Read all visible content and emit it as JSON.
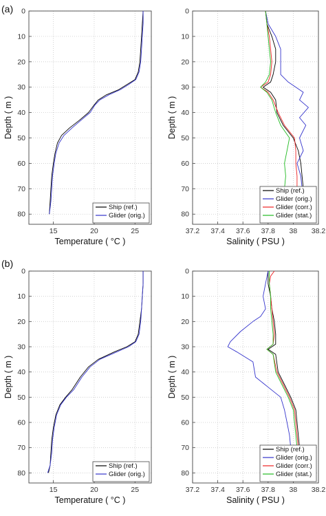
{
  "panel_labels": [
    "(a)",
    "(b)"
  ],
  "chart_data": [
    {
      "type": "line",
      "panel": "(a)",
      "xlabel": "Temperature ( °C )",
      "ylabel": "Depth ( m )",
      "xlim": [
        12,
        27
      ],
      "ylim": [
        0,
        84
      ],
      "y_reversed": true,
      "xticks": [
        15,
        20,
        25
      ],
      "yticks": [
        0,
        10,
        20,
        30,
        40,
        50,
        60,
        70,
        80
      ],
      "grid": true,
      "legend": "bottom-right",
      "series": [
        {
          "name": "Ship (ref.)",
          "color": "#000000",
          "points": [
            [
              26,
              0
            ],
            [
              25.9,
              5
            ],
            [
              25.8,
              10
            ],
            [
              25.7,
              15
            ],
            [
              25.6,
              20
            ],
            [
              25.4,
              24
            ],
            [
              25,
              27
            ],
            [
              24,
              29
            ],
            [
              23,
              31
            ],
            [
              21.5,
              33
            ],
            [
              20.5,
              35
            ],
            [
              20,
              37
            ],
            [
              19.3,
              40
            ],
            [
              18.2,
              43
            ],
            [
              17,
              46
            ],
            [
              16,
              49
            ],
            [
              15.5,
              52
            ],
            [
              15.2,
              56
            ],
            [
              15,
              60
            ],
            [
              14.8,
              65
            ],
            [
              14.7,
              70
            ],
            [
              14.6,
              75
            ],
            [
              14.5,
              80
            ]
          ]
        },
        {
          "name": "Glider (orig.)",
          "color": "#3333cc",
          "points": [
            [
              26,
              0
            ],
            [
              26,
              5
            ],
            [
              25.9,
              10
            ],
            [
              25.8,
              15
            ],
            [
              25.7,
              20
            ],
            [
              25.5,
              24
            ],
            [
              25.1,
              27
            ],
            [
              24.2,
              29
            ],
            [
              23.2,
              31
            ],
            [
              21.8,
              33
            ],
            [
              20.7,
              35
            ],
            [
              20.1,
              37
            ],
            [
              19.5,
              40
            ],
            [
              18.4,
              43
            ],
            [
              17.3,
              46
            ],
            [
              16.3,
              49
            ],
            [
              15.7,
              52
            ],
            [
              15.3,
              56
            ],
            [
              15.1,
              60
            ],
            [
              14.9,
              65
            ],
            [
              14.8,
              70
            ],
            [
              14.7,
              75
            ],
            [
              14.5,
              80
            ]
          ]
        }
      ]
    },
    {
      "type": "line",
      "panel": "(a)",
      "xlabel": "Salinity ( PSU )",
      "ylabel": "Depth ( m )",
      "xlim": [
        37.2,
        38.2
      ],
      "ylim": [
        0,
        84
      ],
      "y_reversed": true,
      "xticks": [
        37.2,
        37.4,
        37.6,
        37.8,
        38,
        38.2
      ],
      "xtick_labels": [
        "37.2",
        "37.4",
        "37.6",
        "37.8",
        "38",
        "38.2"
      ],
      "yticks": [
        0,
        10,
        20,
        30,
        40,
        50,
        60,
        70,
        80
      ],
      "grid": true,
      "legend": "bottom-right",
      "series": [
        {
          "name": "Ship (ref.)",
          "color": "#000000",
          "points": [
            [
              37.78,
              0
            ],
            [
              37.79,
              5
            ],
            [
              37.83,
              10
            ],
            [
              37.86,
              15
            ],
            [
              37.86,
              20
            ],
            [
              37.84,
              25
            ],
            [
              37.82,
              28
            ],
            [
              37.76,
              30
            ],
            [
              37.82,
              32
            ],
            [
              37.86,
              35
            ],
            [
              37.87,
              40
            ],
            [
              37.92,
              45
            ],
            [
              38,
              50
            ],
            [
              38.04,
              55
            ],
            [
              38.06,
              60
            ],
            [
              38.07,
              65
            ],
            [
              38.08,
              70
            ],
            [
              38.09,
              75
            ],
            [
              38.1,
              80
            ]
          ]
        },
        {
          "name": "Glider (orig.)",
          "color": "#3333cc",
          "points": [
            [
              37.78,
              0
            ],
            [
              37.8,
              5
            ],
            [
              37.86,
              10
            ],
            [
              37.9,
              15
            ],
            [
              37.9,
              20
            ],
            [
              37.9,
              25
            ],
            [
              37.96,
              28
            ],
            [
              38.08,
              32
            ],
            [
              38.05,
              35
            ],
            [
              38.12,
              38
            ],
            [
              38.05,
              42
            ],
            [
              38.1,
              45
            ],
            [
              38.05,
              50
            ],
            [
              38.08,
              55
            ],
            [
              38.03,
              60
            ],
            [
              38.06,
              65
            ],
            [
              38.07,
              70
            ],
            [
              38.1,
              75
            ],
            [
              38.12,
              80
            ]
          ]
        },
        {
          "name": "Glider (corr.)",
          "color": "#ee2222",
          "points": [
            [
              37.78,
              0
            ],
            [
              37.79,
              5
            ],
            [
              37.81,
              10
            ],
            [
              37.82,
              15
            ],
            [
              37.83,
              20
            ],
            [
              37.82,
              25
            ],
            [
              37.8,
              28
            ],
            [
              37.74,
              30
            ],
            [
              37.8,
              32
            ],
            [
              37.84,
              35
            ],
            [
              37.88,
              40
            ],
            [
              37.93,
              45
            ],
            [
              38.01,
              50
            ],
            [
              38.02,
              55
            ],
            [
              38.02,
              60
            ],
            [
              38.03,
              65
            ],
            [
              38.03,
              70
            ],
            [
              38.04,
              75
            ],
            [
              38.07,
              80
            ]
          ]
        },
        {
          "name": "Glider (stat.)",
          "color": "#22bb22",
          "points": [
            [
              37.78,
              0
            ],
            [
              37.79,
              5
            ],
            [
              37.8,
              10
            ],
            [
              37.81,
              15
            ],
            [
              37.82,
              20
            ],
            [
              37.81,
              25
            ],
            [
              37.78,
              28
            ],
            [
              37.74,
              30
            ],
            [
              37.79,
              32
            ],
            [
              37.83,
              35
            ],
            [
              37.86,
              40
            ],
            [
              37.9,
              45
            ],
            [
              37.97,
              50
            ],
            [
              37.95,
              55
            ],
            [
              37.93,
              60
            ],
            [
              37.94,
              65
            ],
            [
              37.93,
              70
            ],
            [
              37.96,
              75
            ],
            [
              38.06,
              80
            ]
          ]
        }
      ]
    },
    {
      "type": "line",
      "panel": "(b)",
      "xlabel": "Temperature ( °C )",
      "ylabel": "Depth ( m )",
      "xlim": [
        12,
        27
      ],
      "ylim": [
        0,
        84
      ],
      "y_reversed": true,
      "xticks": [
        15,
        20,
        25
      ],
      "yticks": [
        0,
        10,
        20,
        30,
        40,
        50,
        60,
        70,
        80
      ],
      "grid": true,
      "legend": "bottom-right",
      "series": [
        {
          "name": "Ship (ref.)",
          "color": "#000000",
          "points": [
            [
              26,
              0
            ],
            [
              26,
              5
            ],
            [
              25.9,
              10
            ],
            [
              25.8,
              15
            ],
            [
              25.6,
              20
            ],
            [
              25.4,
              25
            ],
            [
              25,
              28
            ],
            [
              24,
              30
            ],
            [
              22.5,
              32
            ],
            [
              20.5,
              35
            ],
            [
              19.3,
              38
            ],
            [
              18.3,
              42
            ],
            [
              17.3,
              47
            ],
            [
              16.5,
              50
            ],
            [
              15.8,
              53
            ],
            [
              15.3,
              57
            ],
            [
              15,
              62
            ],
            [
              14.8,
              67
            ],
            [
              14.7,
              72
            ],
            [
              14.6,
              77
            ],
            [
              14.4,
              80
            ]
          ]
        },
        {
          "name": "Glider (orig.)",
          "color": "#3333cc",
          "points": [
            [
              26,
              0
            ],
            [
              26,
              5
            ],
            [
              25.9,
              10
            ],
            [
              25.8,
              15
            ],
            [
              25.7,
              20
            ],
            [
              25.5,
              25
            ],
            [
              25.1,
              28
            ],
            [
              24.2,
              30
            ],
            [
              22.8,
              32
            ],
            [
              20.7,
              35
            ],
            [
              19.5,
              38
            ],
            [
              18.5,
              42
            ],
            [
              17.5,
              47
            ],
            [
              16.6,
              50
            ],
            [
              15.9,
              53
            ],
            [
              15.4,
              57
            ],
            [
              15.1,
              62
            ],
            [
              14.9,
              67
            ],
            [
              14.8,
              72
            ],
            [
              14.6,
              77
            ],
            [
              14.3,
              80
            ]
          ]
        }
      ]
    },
    {
      "type": "line",
      "panel": "(b)",
      "xlabel": "Salinity ( PSU )",
      "ylabel": "Depth ( m )",
      "xlim": [
        37.2,
        38.2
      ],
      "ylim": [
        0,
        84
      ],
      "y_reversed": true,
      "xticks": [
        37.2,
        37.4,
        37.6,
        37.8,
        38,
        38.2
      ],
      "xtick_labels": [
        "37.2",
        "37.4",
        "37.6",
        "37.8",
        "38",
        "38.2"
      ],
      "yticks": [
        0,
        10,
        20,
        30,
        40,
        50,
        60,
        70,
        80
      ],
      "grid": true,
      "legend": "bottom-right",
      "series": [
        {
          "name": "Ship (ref.)",
          "color": "#000000",
          "points": [
            [
              37.8,
              0
            ],
            [
              37.8,
              5
            ],
            [
              37.82,
              10
            ],
            [
              37.83,
              15
            ],
            [
              37.85,
              20
            ],
            [
              37.86,
              25
            ],
            [
              37.86,
              29
            ],
            [
              37.8,
              31
            ],
            [
              37.86,
              33
            ],
            [
              37.88,
              40
            ],
            [
              37.93,
              45
            ],
            [
              37.98,
              50
            ],
            [
              38.02,
              55
            ],
            [
              38.03,
              60
            ],
            [
              38.04,
              65
            ],
            [
              38.05,
              70
            ],
            [
              38.06,
              75
            ],
            [
              38.1,
              80
            ]
          ]
        },
        {
          "name": "Glider (orig.)",
          "color": "#3333cc",
          "points": [
            [
              37.8,
              0
            ],
            [
              37.78,
              5
            ],
            [
              37.76,
              10
            ],
            [
              37.78,
              15
            ],
            [
              37.74,
              18
            ],
            [
              37.68,
              20
            ],
            [
              37.58,
              24
            ],
            [
              37.5,
              28
            ],
            [
              37.48,
              30
            ],
            [
              37.55,
              32
            ],
            [
              37.68,
              36
            ],
            [
              37.7,
              42
            ],
            [
              37.8,
              46
            ],
            [
              37.9,
              50
            ],
            [
              37.93,
              55
            ],
            [
              37.95,
              60
            ],
            [
              37.97,
              65
            ],
            [
              37.98,
              70
            ],
            [
              37.99,
              75
            ],
            [
              38.01,
              80
            ]
          ]
        },
        {
          "name": "Glider (corr.)",
          "color": "#ee2222",
          "points": [
            [
              37.85,
              0
            ],
            [
              37.82,
              2
            ],
            [
              37.81,
              5
            ],
            [
              37.82,
              10
            ],
            [
              37.83,
              15
            ],
            [
              37.84,
              20
            ],
            [
              37.85,
              25
            ],
            [
              37.84,
              29
            ],
            [
              37.79,
              31
            ],
            [
              37.84,
              33
            ],
            [
              37.87,
              40
            ],
            [
              37.92,
              45
            ],
            [
              37.97,
              50
            ],
            [
              38.01,
              55
            ],
            [
              38.02,
              60
            ],
            [
              38.03,
              65
            ],
            [
              38.04,
              70
            ],
            [
              38.05,
              75
            ],
            [
              38.09,
              80
            ]
          ]
        },
        {
          "name": "Glider (stat.)",
          "color": "#22bb22",
          "points": [
            [
              37.81,
              0
            ],
            [
              37.81,
              5
            ],
            [
              37.82,
              10
            ],
            [
              37.82,
              15
            ],
            [
              37.83,
              20
            ],
            [
              37.84,
              25
            ],
            [
              37.84,
              29
            ],
            [
              37.79,
              31
            ],
            [
              37.84,
              33
            ],
            [
              37.86,
              40
            ],
            [
              37.91,
              45
            ],
            [
              37.96,
              50
            ],
            [
              38,
              55
            ],
            [
              38.01,
              60
            ],
            [
              38.02,
              65
            ],
            [
              38.03,
              70
            ],
            [
              38.04,
              75
            ],
            [
              38.08,
              80
            ]
          ]
        }
      ]
    }
  ]
}
